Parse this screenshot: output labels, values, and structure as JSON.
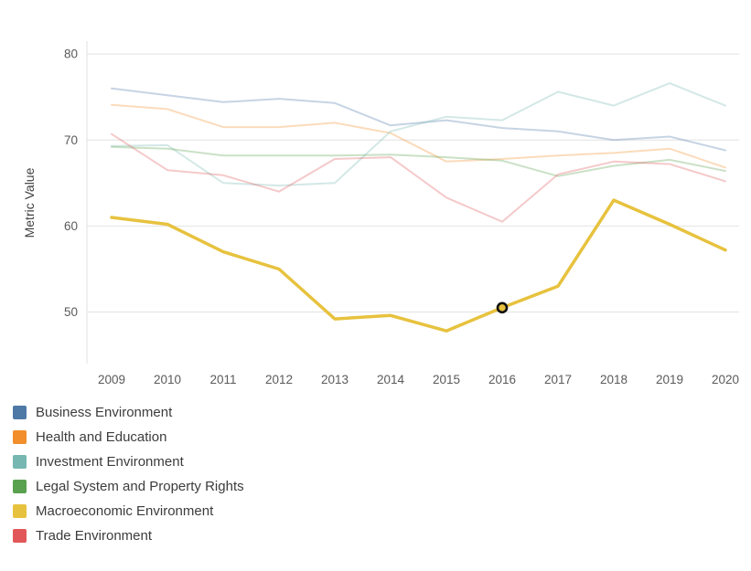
{
  "chart": {
    "y_axis_title": "Metric Value",
    "y_ticks": [
      50,
      60,
      70,
      80
    ],
    "x_ticks": [
      "2009",
      "2010",
      "2011",
      "2012",
      "2013",
      "2014",
      "2015",
      "2016",
      "2017",
      "2018",
      "2019",
      "2020"
    ]
  },
  "chart_data": {
    "type": "line",
    "title": "",
    "xlabel": "",
    "ylabel": "Metric Value",
    "ylim": [
      44,
      81.5
    ],
    "grid": "horizontal",
    "legend_position": "bottom-left",
    "x": [
      2009,
      2010,
      2011,
      2012,
      2013,
      2014,
      2015,
      2016,
      2017,
      2018,
      2019,
      2020
    ],
    "series": [
      {
        "name": "Business Environment",
        "color": "#4e79a7",
        "muted": true,
        "values": [
          76.0,
          75.2,
          74.4,
          74.8,
          74.3,
          71.7,
          72.3,
          71.4,
          71.0,
          70.0,
          70.4,
          68.8
        ]
      },
      {
        "name": "Health and Education",
        "color": "#f28e2b",
        "muted": true,
        "values": [
          74.1,
          73.6,
          71.5,
          71.5,
          72.0,
          70.8,
          67.5,
          67.8,
          68.2,
          68.5,
          69.0,
          66.8
        ]
      },
      {
        "name": "Investment Environment",
        "color": "#76b7b2",
        "muted": true,
        "values": [
          69.3,
          69.4,
          65.0,
          64.7,
          65.0,
          71.0,
          72.7,
          72.3,
          75.6,
          74.0,
          76.6,
          74.0
        ]
      },
      {
        "name": "Legal System and Property Rights",
        "color": "#59a14f",
        "muted": true,
        "values": [
          69.2,
          69.0,
          68.2,
          68.2,
          68.2,
          68.3,
          68.0,
          67.6,
          65.8,
          67.0,
          67.7,
          66.4
        ]
      },
      {
        "name": "Macroeconomic Environment",
        "color": "#e7c23e",
        "muted": false,
        "values": [
          61.0,
          60.2,
          57.0,
          55.0,
          49.2,
          49.6,
          47.8,
          50.5,
          53.0,
          63.0,
          60.2,
          57.2
        ]
      },
      {
        "name": "Trade Environment",
        "color": "#e15759",
        "muted": true,
        "values": [
          70.7,
          66.5,
          65.9,
          64.0,
          67.8,
          68.0,
          63.3,
          60.5,
          66.0,
          67.5,
          67.2,
          65.2
        ]
      }
    ],
    "highlighted_point": {
      "series": "Macroeconomic Environment",
      "x": 2016,
      "y": 50.5
    }
  }
}
